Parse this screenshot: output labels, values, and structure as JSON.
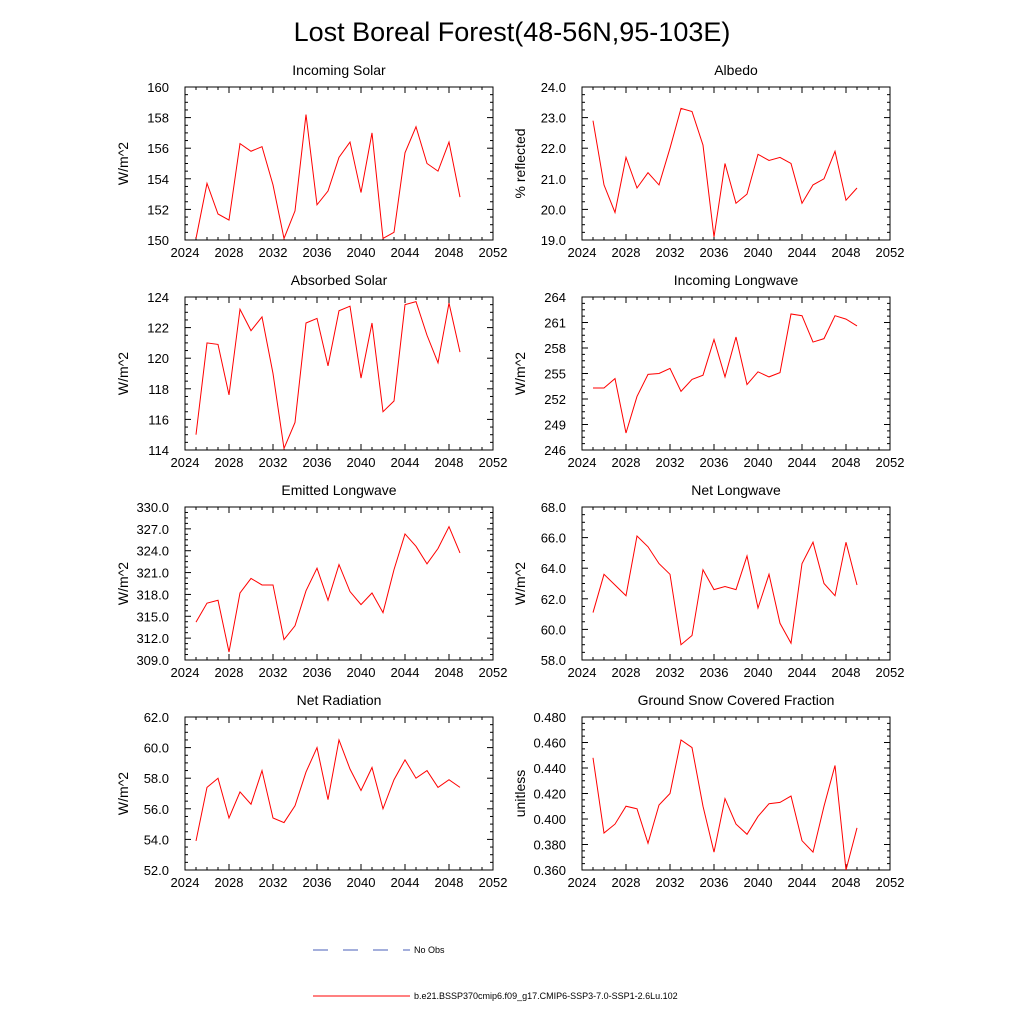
{
  "figure": {
    "title": "Lost Boreal Forest(48-56N,95-103E)"
  },
  "legend": {
    "entries": [
      {
        "label": "No Obs",
        "style": "dashed",
        "color": "#4a5fb8"
      },
      {
        "label": "b.e21.BSSP370cmip6.f09_g17.CMIP6-SSP3-7.0-SSP1-2.6Lu.102",
        "style": "solid",
        "color": "#ff0000"
      }
    ]
  },
  "chart_data": [
    {
      "type": "line",
      "title": "Incoming Solar",
      "xlabel": "",
      "ylabel": "W/m^2",
      "xlim": [
        2024,
        2052
      ],
      "ylim": [
        150,
        160
      ],
      "xticks": [
        2024,
        2028,
        2032,
        2036,
        2040,
        2044,
        2048,
        2052
      ],
      "yticks": [
        150,
        152,
        154,
        156,
        158,
        160
      ],
      "ytick_decimals": 0,
      "x": [
        2025,
        2026,
        2027,
        2028,
        2029,
        2030,
        2031,
        2032,
        2033,
        2034,
        2035,
        2036,
        2037,
        2038,
        2039,
        2040,
        2041,
        2042,
        2043,
        2044,
        2045,
        2046,
        2047,
        2048,
        2049
      ],
      "series": [
        {
          "name": "b.e21.BSSP370cmip6.f09_g17.CMIP6-SSP3-7.0-SSP1-2.6Lu.102",
          "color": "#ff0000",
          "values": [
            150.1,
            153.7,
            151.7,
            151.3,
            156.3,
            155.8,
            156.1,
            153.6,
            150.1,
            151.9,
            158.2,
            152.3,
            153.2,
            155.4,
            156.4,
            153.1,
            157.0,
            150.1,
            150.5,
            155.7,
            157.4,
            155.0,
            154.5,
            156.4,
            152.8
          ]
        }
      ]
    },
    {
      "type": "line",
      "title": "Albedo",
      "xlabel": "",
      "ylabel": "% reflected",
      "xlim": [
        2024,
        2052
      ],
      "ylim": [
        19.0,
        24.0
      ],
      "xticks": [
        2024,
        2028,
        2032,
        2036,
        2040,
        2044,
        2048,
        2052
      ],
      "yticks": [
        19.0,
        20.0,
        21.0,
        22.0,
        23.0,
        24.0
      ],
      "ytick_decimals": 1,
      "x": [
        2025,
        2026,
        2027,
        2028,
        2029,
        2030,
        2031,
        2032,
        2033,
        2034,
        2035,
        2036,
        2037,
        2038,
        2039,
        2040,
        2041,
        2042,
        2043,
        2044,
        2045,
        2046,
        2047,
        2048,
        2049
      ],
      "series": [
        {
          "name": "b.e21.BSSP370cmip6.f09_g17.CMIP6-SSP3-7.0-SSP1-2.6Lu.102",
          "color": "#ff0000",
          "values": [
            22.9,
            20.8,
            19.9,
            21.7,
            20.7,
            21.2,
            20.8,
            22.0,
            23.3,
            23.2,
            22.1,
            19.1,
            21.5,
            20.2,
            20.5,
            21.8,
            21.6,
            21.7,
            21.5,
            20.2,
            20.8,
            21.0,
            21.9,
            20.3,
            20.7
          ]
        }
      ]
    },
    {
      "type": "line",
      "title": "Absorbed Solar",
      "xlabel": "",
      "ylabel": "W/m^2",
      "xlim": [
        2024,
        2052
      ],
      "ylim": [
        114,
        124
      ],
      "xticks": [
        2024,
        2028,
        2032,
        2036,
        2040,
        2044,
        2048,
        2052
      ],
      "yticks": [
        114,
        116,
        118,
        120,
        122,
        124
      ],
      "ytick_decimals": 0,
      "x": [
        2025,
        2026,
        2027,
        2028,
        2029,
        2030,
        2031,
        2032,
        2033,
        2034,
        2035,
        2036,
        2037,
        2038,
        2039,
        2040,
        2041,
        2042,
        2043,
        2044,
        2045,
        2046,
        2047,
        2048,
        2049
      ],
      "series": [
        {
          "name": "b.e21.BSSP370cmip6.f09_g17.CMIP6-SSP3-7.0-SSP1-2.6Lu.102",
          "color": "#ff0000",
          "values": [
            115.0,
            121.0,
            120.9,
            117.6,
            123.2,
            121.8,
            122.7,
            119.0,
            114.1,
            115.8,
            122.3,
            122.6,
            119.5,
            123.1,
            123.4,
            118.7,
            122.3,
            116.5,
            117.2,
            123.5,
            123.7,
            121.5,
            119.7,
            123.6,
            120.4
          ]
        }
      ]
    },
    {
      "type": "line",
      "title": "Incoming Longwave",
      "xlabel": "",
      "ylabel": "W/m^2",
      "xlim": [
        2024,
        2052
      ],
      "ylim": [
        246,
        264
      ],
      "xticks": [
        2024,
        2028,
        2032,
        2036,
        2040,
        2044,
        2048,
        2052
      ],
      "yticks": [
        246,
        249,
        252,
        255,
        258,
        261,
        264
      ],
      "ytick_decimals": 0,
      "x": [
        2025,
        2026,
        2027,
        2028,
        2029,
        2030,
        2031,
        2032,
        2033,
        2034,
        2035,
        2036,
        2037,
        2038,
        2039,
        2040,
        2041,
        2042,
        2043,
        2044,
        2045,
        2046,
        2047,
        2048,
        2049
      ],
      "series": [
        {
          "name": "b.e21.BSSP370cmip6.f09_g17.CMIP6-SSP3-7.0-SSP1-2.6Lu.102",
          "color": "#ff0000",
          "values": [
            253.3,
            253.3,
            254.4,
            248.0,
            252.3,
            254.9,
            255.0,
            255.6,
            252.9,
            254.3,
            254.8,
            259.0,
            254.6,
            259.3,
            253.7,
            255.2,
            254.6,
            255.1,
            262.0,
            261.8,
            258.7,
            259.1,
            261.8,
            261.4,
            260.6
          ]
        }
      ]
    },
    {
      "type": "line",
      "title": "Emitted Longwave",
      "xlabel": "",
      "ylabel": "W/m^2",
      "xlim": [
        2024,
        2052
      ],
      "ylim": [
        309.0,
        330.0
      ],
      "xticks": [
        2024,
        2028,
        2032,
        2036,
        2040,
        2044,
        2048,
        2052
      ],
      "yticks": [
        309.0,
        312.0,
        315.0,
        318.0,
        321.0,
        324.0,
        327.0,
        330.0
      ],
      "ytick_decimals": 1,
      "x": [
        2025,
        2026,
        2027,
        2028,
        2029,
        2030,
        2031,
        2032,
        2033,
        2034,
        2035,
        2036,
        2037,
        2038,
        2039,
        2040,
        2041,
        2042,
        2043,
        2044,
        2045,
        2046,
        2047,
        2048,
        2049
      ],
      "series": [
        {
          "name": "b.e21.BSSP370cmip6.f09_g17.CMIP6-SSP3-7.0-SSP1-2.6Lu.102",
          "color": "#ff0000",
          "values": [
            314.2,
            316.8,
            317.2,
            310.1,
            318.2,
            320.2,
            319.3,
            319.3,
            311.8,
            313.7,
            318.5,
            321.6,
            317.2,
            322.1,
            318.4,
            316.6,
            318.2,
            315.5,
            321.4,
            326.3,
            324.6,
            322.2,
            324.3,
            327.3,
            323.7
          ]
        }
      ]
    },
    {
      "type": "line",
      "title": "Net Longwave",
      "xlabel": "",
      "ylabel": "W/m^2",
      "xlim": [
        2024,
        2052
      ],
      "ylim": [
        58.0,
        68.0
      ],
      "xticks": [
        2024,
        2028,
        2032,
        2036,
        2040,
        2044,
        2048,
        2052
      ],
      "yticks": [
        58.0,
        60.0,
        62.0,
        64.0,
        66.0,
        68.0
      ],
      "ytick_decimals": 1,
      "x": [
        2025,
        2026,
        2027,
        2028,
        2029,
        2030,
        2031,
        2032,
        2033,
        2034,
        2035,
        2036,
        2037,
        2038,
        2039,
        2040,
        2041,
        2042,
        2043,
        2044,
        2045,
        2046,
        2047,
        2048,
        2049
      ],
      "series": [
        {
          "name": "b.e21.BSSP370cmip6.f09_g17.CMIP6-SSP3-7.0-SSP1-2.6Lu.102",
          "color": "#ff0000",
          "values": [
            61.1,
            63.6,
            62.9,
            62.2,
            66.1,
            65.4,
            64.3,
            63.6,
            59.0,
            59.6,
            63.9,
            62.6,
            62.8,
            62.6,
            64.8,
            61.4,
            63.6,
            60.4,
            59.1,
            64.3,
            65.7,
            63.0,
            62.2,
            65.7,
            62.9
          ]
        }
      ]
    },
    {
      "type": "line",
      "title": "Net Radiation",
      "xlabel": "",
      "ylabel": "W/m^2",
      "xlim": [
        2024,
        2052
      ],
      "ylim": [
        52.0,
        62.0
      ],
      "xticks": [
        2024,
        2028,
        2032,
        2036,
        2040,
        2044,
        2048,
        2052
      ],
      "yticks": [
        52.0,
        54.0,
        56.0,
        58.0,
        60.0,
        62.0
      ],
      "ytick_decimals": 1,
      "x": [
        2025,
        2026,
        2027,
        2028,
        2029,
        2030,
        2031,
        2032,
        2033,
        2034,
        2035,
        2036,
        2037,
        2038,
        2039,
        2040,
        2041,
        2042,
        2043,
        2044,
        2045,
        2046,
        2047,
        2048,
        2049
      ],
      "series": [
        {
          "name": "b.e21.BSSP370cmip6.f09_g17.CMIP6-SSP3-7.0-SSP1-2.6Lu.102",
          "color": "#ff0000",
          "values": [
            53.9,
            57.4,
            58.0,
            55.4,
            57.1,
            56.3,
            58.5,
            55.4,
            55.1,
            56.2,
            58.4,
            60.0,
            56.6,
            60.5,
            58.6,
            57.2,
            58.7,
            56.0,
            57.9,
            59.2,
            58.0,
            58.5,
            57.4,
            57.9,
            57.4
          ]
        }
      ]
    },
    {
      "type": "line",
      "title": "Ground Snow Covered Fraction",
      "xlabel": "",
      "ylabel": "unitless",
      "xlim": [
        2024,
        2052
      ],
      "ylim": [
        0.36,
        0.48
      ],
      "xticks": [
        2024,
        2028,
        2032,
        2036,
        2040,
        2044,
        2048,
        2052
      ],
      "yticks": [
        0.36,
        0.38,
        0.4,
        0.42,
        0.44,
        0.46,
        0.48
      ],
      "ytick_decimals": 3,
      "x": [
        2025,
        2026,
        2027,
        2028,
        2029,
        2030,
        2031,
        2032,
        2033,
        2034,
        2035,
        2036,
        2037,
        2038,
        2039,
        2040,
        2041,
        2042,
        2043,
        2044,
        2045,
        2046,
        2047,
        2048,
        2049
      ],
      "series": [
        {
          "name": "b.e21.BSSP370cmip6.f09_g17.CMIP6-SSP3-7.0-SSP1-2.6Lu.102",
          "color": "#ff0000",
          "values": [
            0.448,
            0.389,
            0.396,
            0.41,
            0.408,
            0.381,
            0.411,
            0.42,
            0.462,
            0.456,
            0.41,
            0.374,
            0.416,
            0.396,
            0.388,
            0.402,
            0.412,
            0.413,
            0.418,
            0.383,
            0.374,
            0.41,
            0.442,
            0.36,
            0.393
          ]
        }
      ]
    }
  ]
}
